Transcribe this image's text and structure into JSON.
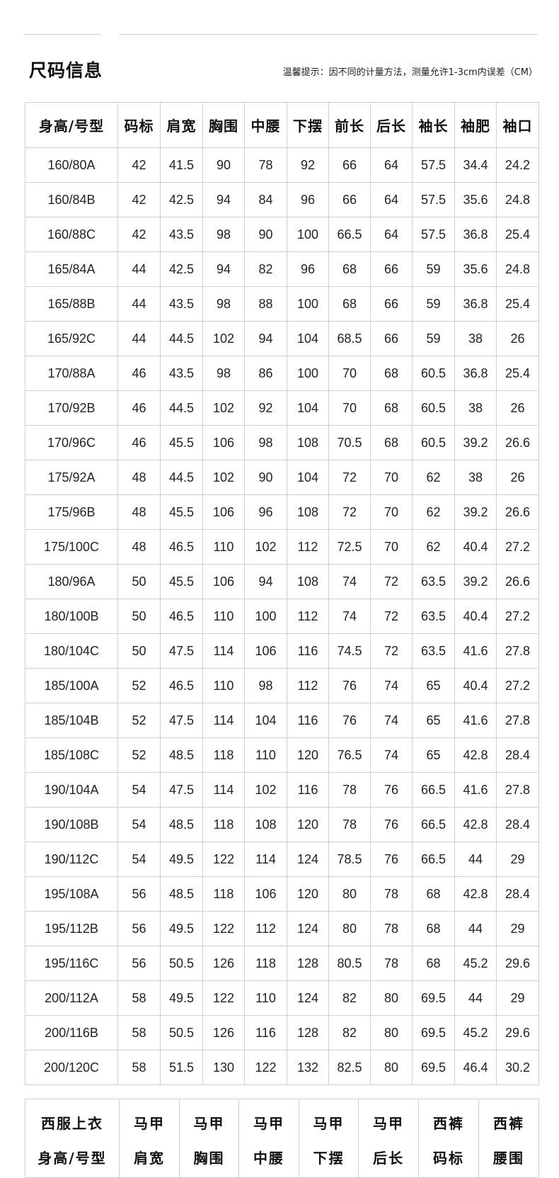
{
  "header": {
    "title": "尺码信息",
    "tip": "温馨提示：因不同的计量方法，测量允许1-3cm内误差（CM）"
  },
  "size_table": {
    "columns": [
      "身高/号型",
      "码标",
      "肩宽",
      "胸围",
      "中腰",
      "下摆",
      "前长",
      "后长",
      "袖长",
      "袖肥",
      "袖口"
    ],
    "rows": [
      [
        "160/80A",
        "42",
        "41.5",
        "90",
        "78",
        "92",
        "66",
        "64",
        "57.5",
        "34.4",
        "24.2"
      ],
      [
        "160/84B",
        "42",
        "42.5",
        "94",
        "84",
        "96",
        "66",
        "64",
        "57.5",
        "35.6",
        "24.8"
      ],
      [
        "160/88C",
        "42",
        "43.5",
        "98",
        "90",
        "100",
        "66.5",
        "64",
        "57.5",
        "36.8",
        "25.4"
      ],
      [
        "165/84A",
        "44",
        "42.5",
        "94",
        "82",
        "96",
        "68",
        "66",
        "59",
        "35.6",
        "24.8"
      ],
      [
        "165/88B",
        "44",
        "43.5",
        "98",
        "88",
        "100",
        "68",
        "66",
        "59",
        "36.8",
        "25.4"
      ],
      [
        "165/92C",
        "44",
        "44.5",
        "102",
        "94",
        "104",
        "68.5",
        "66",
        "59",
        "38",
        "26"
      ],
      [
        "170/88A",
        "46",
        "43.5",
        "98",
        "86",
        "100",
        "70",
        "68",
        "60.5",
        "36.8",
        "25.4"
      ],
      [
        "170/92B",
        "46",
        "44.5",
        "102",
        "92",
        "104",
        "70",
        "68",
        "60.5",
        "38",
        "26"
      ],
      [
        "170/96C",
        "46",
        "45.5",
        "106",
        "98",
        "108",
        "70.5",
        "68",
        "60.5",
        "39.2",
        "26.6"
      ],
      [
        "175/92A",
        "48",
        "44.5",
        "102",
        "90",
        "104",
        "72",
        "70",
        "62",
        "38",
        "26"
      ],
      [
        "175/96B",
        "48",
        "45.5",
        "106",
        "96",
        "108",
        "72",
        "70",
        "62",
        "39.2",
        "26.6"
      ],
      [
        "175/100C",
        "48",
        "46.5",
        "110",
        "102",
        "112",
        "72.5",
        "70",
        "62",
        "40.4",
        "27.2"
      ],
      [
        "180/96A",
        "50",
        "45.5",
        "106",
        "94",
        "108",
        "74",
        "72",
        "63.5",
        "39.2",
        "26.6"
      ],
      [
        "180/100B",
        "50",
        "46.5",
        "110",
        "100",
        "112",
        "74",
        "72",
        "63.5",
        "40.4",
        "27.2"
      ],
      [
        "180/104C",
        "50",
        "47.5",
        "114",
        "106",
        "116",
        "74.5",
        "72",
        "63.5",
        "41.6",
        "27.8"
      ],
      [
        "185/100A",
        "52",
        "46.5",
        "110",
        "98",
        "112",
        "76",
        "74",
        "65",
        "40.4",
        "27.2"
      ],
      [
        "185/104B",
        "52",
        "47.5",
        "114",
        "104",
        "116",
        "76",
        "74",
        "65",
        "41.6",
        "27.8"
      ],
      [
        "185/108C",
        "52",
        "48.5",
        "118",
        "110",
        "120",
        "76.5",
        "74",
        "65",
        "42.8",
        "28.4"
      ],
      [
        "190/104A",
        "54",
        "47.5",
        "114",
        "102",
        "116",
        "78",
        "76",
        "66.5",
        "41.6",
        "27.8"
      ],
      [
        "190/108B",
        "54",
        "48.5",
        "118",
        "108",
        "120",
        "78",
        "76",
        "66.5",
        "42.8",
        "28.4"
      ],
      [
        "190/112C",
        "54",
        "49.5",
        "122",
        "114",
        "124",
        "78.5",
        "76",
        "66.5",
        "44",
        "29"
      ],
      [
        "195/108A",
        "56",
        "48.5",
        "118",
        "106",
        "120",
        "80",
        "78",
        "68",
        "42.8",
        "28.4"
      ],
      [
        "195/112B",
        "56",
        "49.5",
        "122",
        "112",
        "124",
        "80",
        "78",
        "68",
        "44",
        "29"
      ],
      [
        "195/116C",
        "56",
        "50.5",
        "126",
        "118",
        "128",
        "80.5",
        "78",
        "68",
        "45.2",
        "29.6"
      ],
      [
        "200/112A",
        "58",
        "49.5",
        "122",
        "110",
        "124",
        "82",
        "80",
        "69.5",
        "44",
        "29"
      ],
      [
        "200/116B",
        "58",
        "50.5",
        "126",
        "116",
        "128",
        "82",
        "80",
        "69.5",
        "45.2",
        "29.6"
      ],
      [
        "200/120C",
        "58",
        "51.5",
        "130",
        "122",
        "132",
        "82.5",
        "80",
        "69.5",
        "46.4",
        "30.2"
      ]
    ]
  },
  "suit_table": {
    "columns": [
      [
        "西服上衣",
        "身高/号型"
      ],
      [
        "马甲",
        "肩宽"
      ],
      [
        "马甲",
        "胸围"
      ],
      [
        "马甲",
        "中腰"
      ],
      [
        "马甲",
        "下摆"
      ],
      [
        "马甲",
        "后长"
      ],
      [
        "西裤",
        "码标"
      ],
      [
        "西裤",
        "腰围"
      ]
    ]
  }
}
